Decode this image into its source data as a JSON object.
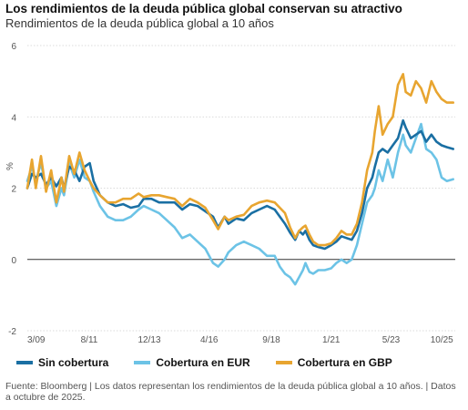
{
  "header": {
    "title": "Los rendimientos de la deuda pública global conservan su atractivo",
    "subtitle": "Rendimientos de la deuda pública global a 10 años"
  },
  "footer": {
    "text": "Fuente: Bloomberg | Los datos representan los rendimientos de la deuda pública global a 10 años. | Datos a octubre de 2025."
  },
  "chart_data": {
    "type": "line",
    "ylabel": "%",
    "ylim": [
      -2,
      6
    ],
    "yticks": [
      -2,
      0,
      2,
      4,
      6
    ],
    "xlim": [
      2009.17,
      2025.83
    ],
    "xtick_labels": [
      "3/09",
      "8/11",
      "12/13",
      "4/16",
      "9/18",
      "1/21",
      "5/23",
      "10/25"
    ],
    "xtick_positions": [
      2009.17,
      2011.58,
      2013.92,
      2016.25,
      2018.67,
      2021.0,
      2023.33,
      2025.75
    ],
    "grid": true,
    "legend_position": "bottom",
    "series": [
      {
        "name": "Sin cobertura",
        "color": "#1a6fa3",
        "values": [
          [
            2009.17,
            2.0
          ],
          [
            2009.35,
            2.4
          ],
          [
            2009.5,
            2.3
          ],
          [
            2009.7,
            2.4
          ],
          [
            2009.9,
            2.1
          ],
          [
            2010.1,
            2.3
          ],
          [
            2010.3,
            2.05
          ],
          [
            2010.5,
            2.3
          ],
          [
            2010.6,
            2.0
          ],
          [
            2010.8,
            2.6
          ],
          [
            2011.0,
            2.5
          ],
          [
            2011.2,
            2.2
          ],
          [
            2011.4,
            2.6
          ],
          [
            2011.6,
            2.7
          ],
          [
            2011.75,
            2.2
          ],
          [
            2012.0,
            1.8
          ],
          [
            2012.3,
            1.6
          ],
          [
            2012.6,
            1.5
          ],
          [
            2012.9,
            1.55
          ],
          [
            2013.2,
            1.45
          ],
          [
            2013.5,
            1.5
          ],
          [
            2013.7,
            1.7
          ],
          [
            2014.0,
            1.7
          ],
          [
            2014.3,
            1.6
          ],
          [
            2014.6,
            1.6
          ],
          [
            2014.9,
            1.6
          ],
          [
            2015.2,
            1.4
          ],
          [
            2015.5,
            1.55
          ],
          [
            2015.8,
            1.5
          ],
          [
            2016.1,
            1.35
          ],
          [
            2016.4,
            1.2
          ],
          [
            2016.6,
            0.9
          ],
          [
            2016.85,
            1.2
          ],
          [
            2017.0,
            1.0
          ],
          [
            2017.3,
            1.15
          ],
          [
            2017.6,
            1.1
          ],
          [
            2017.9,
            1.3
          ],
          [
            2018.2,
            1.4
          ],
          [
            2018.5,
            1.5
          ],
          [
            2018.8,
            1.4
          ],
          [
            2019.0,
            1.2
          ],
          [
            2019.2,
            1.0
          ],
          [
            2019.4,
            0.75
          ],
          [
            2019.6,
            0.55
          ],
          [
            2019.75,
            0.8
          ],
          [
            2019.9,
            0.7
          ],
          [
            2020.0,
            0.8
          ],
          [
            2020.15,
            0.55
          ],
          [
            2020.3,
            0.4
          ],
          [
            2020.5,
            0.35
          ],
          [
            2020.75,
            0.3
          ],
          [
            2021.0,
            0.4
          ],
          [
            2021.2,
            0.5
          ],
          [
            2021.4,
            0.65
          ],
          [
            2021.6,
            0.6
          ],
          [
            2021.8,
            0.55
          ],
          [
            2022.0,
            0.8
          ],
          [
            2022.2,
            1.3
          ],
          [
            2022.4,
            2.0
          ],
          [
            2022.6,
            2.3
          ],
          [
            2022.7,
            2.6
          ],
          [
            2022.85,
            3.0
          ],
          [
            2023.0,
            3.1
          ],
          [
            2023.2,
            3.0
          ],
          [
            2023.4,
            3.2
          ],
          [
            2023.6,
            3.4
          ],
          [
            2023.8,
            3.9
          ],
          [
            2023.9,
            3.7
          ],
          [
            2024.1,
            3.4
          ],
          [
            2024.3,
            3.5
          ],
          [
            2024.5,
            3.6
          ],
          [
            2024.7,
            3.3
          ],
          [
            2024.9,
            3.5
          ],
          [
            2025.1,
            3.3
          ],
          [
            2025.3,
            3.2
          ],
          [
            2025.5,
            3.15
          ],
          [
            2025.75,
            3.1
          ]
        ]
      },
      {
        "name": "Cobertura en EUR",
        "color": "#6cc3e6",
        "values": [
          [
            2009.17,
            2.2
          ],
          [
            2009.35,
            2.6
          ],
          [
            2009.5,
            2.2
          ],
          [
            2009.7,
            2.7
          ],
          [
            2009.9,
            2.0
          ],
          [
            2010.1,
            2.2
          ],
          [
            2010.3,
            1.5
          ],
          [
            2010.5,
            2.0
          ],
          [
            2010.6,
            1.8
          ],
          [
            2010.8,
            2.7
          ],
          [
            2011.0,
            2.3
          ],
          [
            2011.2,
            2.8
          ],
          [
            2011.4,
            2.3
          ],
          [
            2011.6,
            2.2
          ],
          [
            2011.75,
            1.9
          ],
          [
            2012.0,
            1.5
          ],
          [
            2012.3,
            1.2
          ],
          [
            2012.6,
            1.1
          ],
          [
            2012.9,
            1.1
          ],
          [
            2013.2,
            1.2
          ],
          [
            2013.5,
            1.4
          ],
          [
            2013.7,
            1.5
          ],
          [
            2014.0,
            1.4
          ],
          [
            2014.3,
            1.3
          ],
          [
            2014.6,
            1.1
          ],
          [
            2014.9,
            0.9
          ],
          [
            2015.2,
            0.6
          ],
          [
            2015.5,
            0.7
          ],
          [
            2015.8,
            0.5
          ],
          [
            2016.1,
            0.3
          ],
          [
            2016.4,
            -0.1
          ],
          [
            2016.6,
            -0.2
          ],
          [
            2016.85,
            0.0
          ],
          [
            2017.0,
            0.2
          ],
          [
            2017.3,
            0.4
          ],
          [
            2017.6,
            0.5
          ],
          [
            2017.9,
            0.4
          ],
          [
            2018.2,
            0.3
          ],
          [
            2018.5,
            0.1
          ],
          [
            2018.8,
            0.1
          ],
          [
            2019.0,
            -0.2
          ],
          [
            2019.2,
            -0.4
          ],
          [
            2019.4,
            -0.5
          ],
          [
            2019.6,
            -0.7
          ],
          [
            2019.75,
            -0.5
          ],
          [
            2019.9,
            -0.3
          ],
          [
            2020.0,
            -0.1
          ],
          [
            2020.15,
            -0.35
          ],
          [
            2020.3,
            -0.4
          ],
          [
            2020.5,
            -0.3
          ],
          [
            2020.75,
            -0.3
          ],
          [
            2021.0,
            -0.25
          ],
          [
            2021.2,
            -0.1
          ],
          [
            2021.4,
            0.0
          ],
          [
            2021.6,
            -0.1
          ],
          [
            2021.8,
            0.0
          ],
          [
            2022.0,
            0.4
          ],
          [
            2022.2,
            1.0
          ],
          [
            2022.4,
            1.6
          ],
          [
            2022.6,
            1.8
          ],
          [
            2022.7,
            2.0
          ],
          [
            2022.85,
            2.5
          ],
          [
            2023.0,
            2.2
          ],
          [
            2023.2,
            2.8
          ],
          [
            2023.4,
            2.3
          ],
          [
            2023.6,
            3.0
          ],
          [
            2023.8,
            3.5
          ],
          [
            2023.9,
            3.2
          ],
          [
            2024.1,
            3.0
          ],
          [
            2024.3,
            3.4
          ],
          [
            2024.5,
            3.8
          ],
          [
            2024.7,
            3.1
          ],
          [
            2024.9,
            3.0
          ],
          [
            2025.1,
            2.8
          ],
          [
            2025.3,
            2.3
          ],
          [
            2025.5,
            2.2
          ],
          [
            2025.75,
            2.25
          ]
        ]
      },
      {
        "name": "Cobertura en GBP",
        "color": "#e8a530",
        "values": [
          [
            2009.17,
            2.0
          ],
          [
            2009.35,
            2.8
          ],
          [
            2009.5,
            2.0
          ],
          [
            2009.7,
            2.9
          ],
          [
            2009.9,
            1.9
          ],
          [
            2010.1,
            2.5
          ],
          [
            2010.3,
            1.6
          ],
          [
            2010.5,
            2.3
          ],
          [
            2010.6,
            1.9
          ],
          [
            2010.8,
            2.9
          ],
          [
            2011.0,
            2.4
          ],
          [
            2011.2,
            3.0
          ],
          [
            2011.4,
            2.5
          ],
          [
            2011.6,
            2.2
          ],
          [
            2011.75,
            2.0
          ],
          [
            2012.0,
            1.8
          ],
          [
            2012.3,
            1.6
          ],
          [
            2012.6,
            1.6
          ],
          [
            2012.9,
            1.7
          ],
          [
            2013.2,
            1.7
          ],
          [
            2013.5,
            1.85
          ],
          [
            2013.7,
            1.75
          ],
          [
            2014.0,
            1.8
          ],
          [
            2014.3,
            1.8
          ],
          [
            2014.6,
            1.75
          ],
          [
            2014.9,
            1.7
          ],
          [
            2015.2,
            1.5
          ],
          [
            2015.5,
            1.7
          ],
          [
            2015.8,
            1.6
          ],
          [
            2016.1,
            1.45
          ],
          [
            2016.4,
            1.1
          ],
          [
            2016.6,
            0.85
          ],
          [
            2016.85,
            1.2
          ],
          [
            2017.0,
            1.1
          ],
          [
            2017.3,
            1.2
          ],
          [
            2017.6,
            1.25
          ],
          [
            2017.9,
            1.5
          ],
          [
            2018.2,
            1.6
          ],
          [
            2018.5,
            1.65
          ],
          [
            2018.8,
            1.6
          ],
          [
            2019.0,
            1.45
          ],
          [
            2019.2,
            1.3
          ],
          [
            2019.4,
            0.9
          ],
          [
            2019.6,
            0.6
          ],
          [
            2019.75,
            0.8
          ],
          [
            2019.9,
            0.9
          ],
          [
            2020.0,
            0.95
          ],
          [
            2020.15,
            0.7
          ],
          [
            2020.3,
            0.5
          ],
          [
            2020.5,
            0.4
          ],
          [
            2020.75,
            0.4
          ],
          [
            2021.0,
            0.45
          ],
          [
            2021.2,
            0.6
          ],
          [
            2021.4,
            0.8
          ],
          [
            2021.6,
            0.7
          ],
          [
            2021.8,
            0.7
          ],
          [
            2022.0,
            1.0
          ],
          [
            2022.2,
            1.6
          ],
          [
            2022.4,
            2.5
          ],
          [
            2022.6,
            3.0
          ],
          [
            2022.7,
            3.6
          ],
          [
            2022.85,
            4.3
          ],
          [
            2023.0,
            3.5
          ],
          [
            2023.2,
            3.8
          ],
          [
            2023.4,
            4.0
          ],
          [
            2023.6,
            4.9
          ],
          [
            2023.8,
            5.2
          ],
          [
            2023.9,
            4.7
          ],
          [
            2024.1,
            4.6
          ],
          [
            2024.3,
            5.0
          ],
          [
            2024.5,
            4.8
          ],
          [
            2024.7,
            4.4
          ],
          [
            2024.9,
            5.0
          ],
          [
            2025.1,
            4.7
          ],
          [
            2025.3,
            4.5
          ],
          [
            2025.5,
            4.4
          ],
          [
            2025.75,
            4.4
          ]
        ]
      }
    ]
  }
}
